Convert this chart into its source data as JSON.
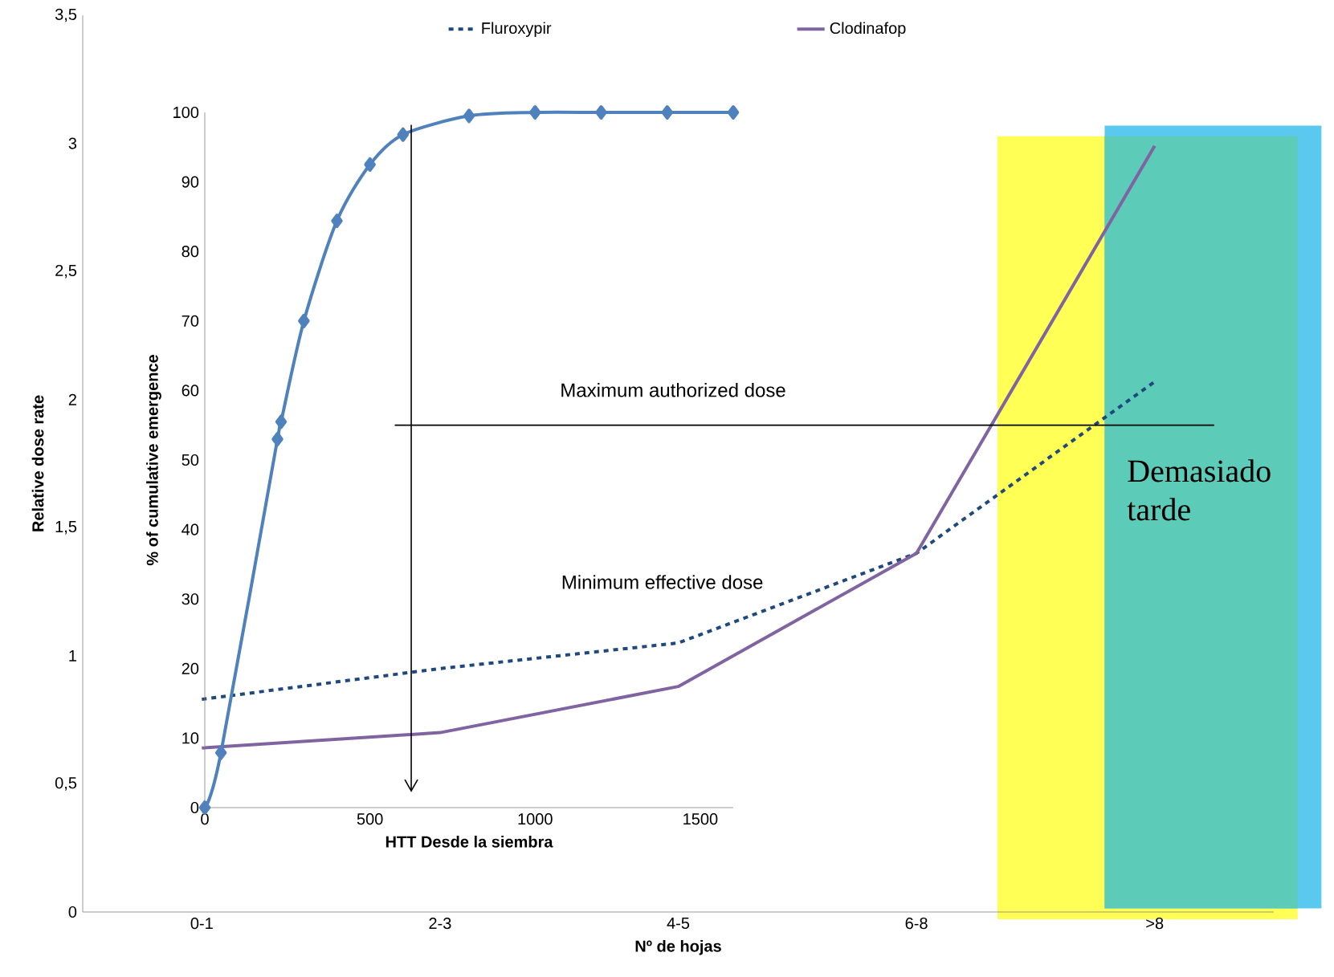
{
  "chart_data": [
    {
      "type": "line",
      "xlabel": "Nº de hojas",
      "ylabel": "Relative dose rate",
      "categories": [
        "0-1",
        "2-3",
        "4-5",
        "6-8",
        ">8"
      ],
      "ylim": [
        0,
        3.5
      ],
      "yticks": [
        0,
        {
          "value": 0.5,
          "label": "0,5"
        },
        1,
        {
          "value": 1.5,
          "label": "1,5"
        },
        2,
        {
          "value": 2.5,
          "label": "2,5"
        },
        3,
        {
          "value": 3.5,
          "label": "3,5"
        }
      ],
      "series": [
        {
          "name": "Fluroxypir",
          "color": "#1f497d",
          "line_style": "dashed",
          "values": [
            0.83,
            0.95,
            1.05,
            1.4,
            2.07
          ]
        },
        {
          "name": "Clodinafop",
          "color": "#8064a2",
          "line_style": "solid",
          "values": [
            0.64,
            0.7,
            0.88,
            1.4,
            2.99
          ]
        }
      ],
      "ref_lines": [
        {
          "axis": "y",
          "value": 1.9,
          "label": "Maximum authorized dose",
          "color": "#000000"
        }
      ],
      "annotations": [
        "Minimum effective dose",
        "Demasiado tarde"
      ],
      "marker": "none",
      "grid": false,
      "legend": "top"
    },
    {
      "type": "line",
      "xlabel": "HTT Desde la siembra",
      "ylabel": "% of cumulative emergence",
      "xlim": [
        0,
        1600
      ],
      "xticks": [
        0,
        500,
        1000,
        1500
      ],
      "ylim": [
        0,
        100
      ],
      "yticks": [
        0,
        10,
        20,
        30,
        40,
        50,
        60,
        70,
        80,
        90,
        100
      ],
      "series": [
        {
          "color": "#4f81bd",
          "x": [
            0,
            49,
            220,
            231,
            300,
            400,
            500,
            600,
            800,
            1000,
            1200,
            1400,
            1600
          ],
          "values": [
            0,
            7.9,
            53,
            55.5,
            70,
            84.4,
            92.5,
            96.8,
            99.5,
            100,
            100,
            100,
            100
          ]
        }
      ],
      "ref_lines": [
        {
          "axis": "x",
          "value": 625,
          "color": "#000000"
        }
      ],
      "marker": "diamond",
      "grid": false,
      "legend": false
    }
  ]
}
